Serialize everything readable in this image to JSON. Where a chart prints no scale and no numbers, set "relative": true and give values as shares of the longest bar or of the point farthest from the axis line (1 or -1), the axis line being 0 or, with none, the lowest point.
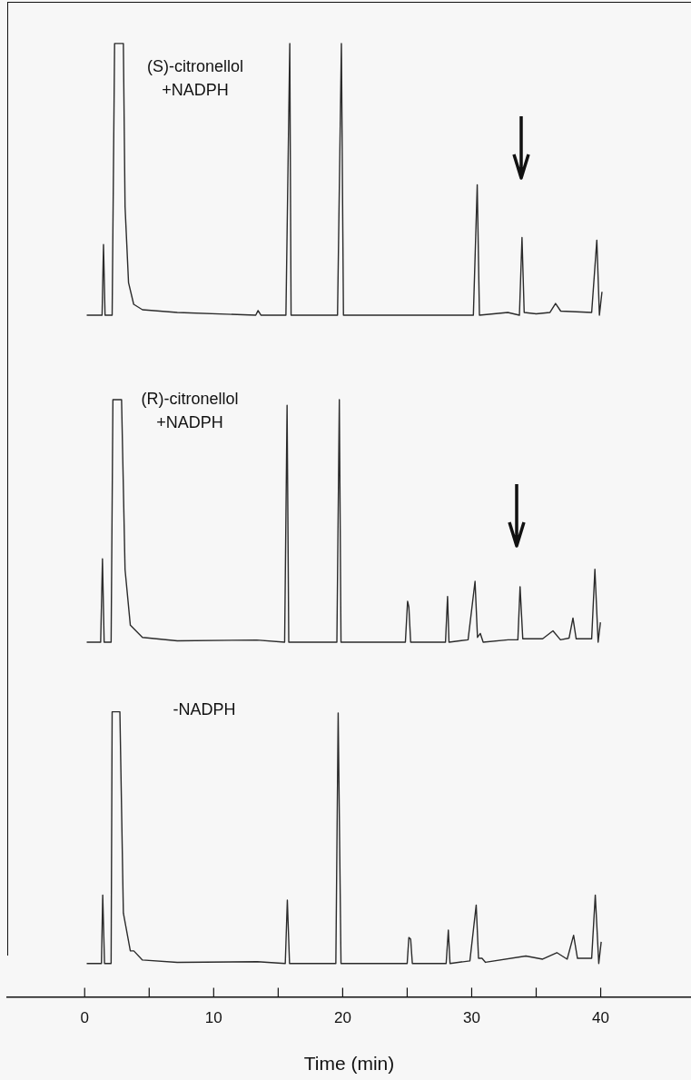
{
  "chart_data": [
    {
      "type": "line",
      "relative": true,
      "xticks": [
        0,
        10,
        20,
        30,
        40
      ],
      "tick_labels": false,
      "x": [
        0.16,
        1.35,
        1.46,
        1.58,
        2.13,
        2.32,
        3.0,
        3.13,
        3.4,
        3.8,
        4.48,
        7.18,
        13.26,
        13.44,
        13.66,
        15.6,
        15.9,
        16.0,
        19.6,
        19.9,
        20.06,
        30.13,
        30.43,
        30.6,
        32.8,
        33.7,
        33.9,
        34.07,
        35.0,
        36.07,
        36.5,
        36.9,
        39.3,
        39.7,
        39.9,
        40.1
      ],
      "series": [
        {
          "name": "(S)-citronellol +NADPH",
          "color": "#2b2b2b",
          "values": [
            0,
            0,
            0.26,
            0,
            0,
            1,
            1,
            0.4,
            0.12,
            0.04,
            0.02,
            0.01,
            0,
            0.017,
            0,
            0,
            1,
            0,
            0,
            1,
            0,
            0,
            0.48,
            0,
            0.01,
            0,
            0.286,
            0.01,
            0.005,
            0.01,
            0.043,
            0.015,
            0.01,
            0.276,
            0,
            0.086
          ]
        }
      ]
    },
    {
      "type": "line",
      "relative": true,
      "xticks": [
        0,
        10,
        20,
        30,
        40
      ],
      "tick_labels": false,
      "x": [
        0.16,
        1.24,
        1.38,
        1.51,
        2.05,
        2.19,
        2.86,
        3.13,
        3.54,
        4.48,
        7.18,
        13.34,
        15.5,
        15.69,
        15.82,
        19.55,
        19.74,
        19.87,
        24.86,
        25.03,
        25.13,
        25.27,
        27.97,
        28.13,
        28.24,
        29.72,
        30.26,
        30.45,
        30.67,
        30.89,
        32.83,
        33.58,
        33.75,
        33.96,
        35.5,
        36.3,
        36.88,
        37.55,
        37.85,
        38.1,
        39.3,
        39.55,
        39.8,
        39.98
      ],
      "series": [
        {
          "name": "(R)-citronellol +NADPH",
          "color": "#2b2b2b",
          "values": [
            0,
            0,
            0.344,
            0,
            0,
            1,
            1,
            0.3,
            0.07,
            0.02,
            0.006,
            0.009,
            0,
            0.977,
            0,
            0,
            1,
            0,
            0,
            0.169,
            0.146,
            0,
            0,
            0.189,
            0,
            0.01,
            0.251,
            0.02,
            0.036,
            0,
            0.01,
            0.01,
            0.229,
            0.014,
            0.014,
            0.047,
            0.01,
            0.017,
            0.1,
            0.014,
            0.014,
            0.301,
            0,
            0.082
          ]
        }
      ]
    },
    {
      "type": "line",
      "relative": true,
      "xlim": [
        -6,
        47
      ],
      "xticks": [
        0,
        {
          "value": 5,
          "label": null
        },
        10,
        {
          "value": 15,
          "label": null
        },
        20,
        {
          "value": 25,
          "label": null
        },
        30,
        {
          "value": 35,
          "label": null
        },
        40
      ],
      "tick_labels": "x",
      "xlabel": "Time (min)",
      "x": [
        0.16,
        1.3,
        1.4,
        1.54,
        2.05,
        2.13,
        2.73,
        3.0,
        3.54,
        3.81,
        4.48,
        7.18,
        13.39,
        15.55,
        15.71,
        15.88,
        19.47,
        19.65,
        19.87,
        25.0,
        25.13,
        25.27,
        25.4,
        28.02,
        28.19,
        28.32,
        29.86,
        30.35,
        30.53,
        30.8,
        31.07,
        34.2,
        35.5,
        36.6,
        37.4,
        37.9,
        38.2,
        39.3,
        39.58,
        39.85,
        40.04
      ],
      "series": [
        {
          "name": "-NADPH",
          "color": "#2b2b2b",
          "values": [
            0.117,
            0.117,
            0.357,
            0.117,
            0.117,
            1,
            1,
            0.294,
            0.161,
            0.161,
            0.129,
            0.121,
            0.123,
            0.117,
            0.339,
            0.117,
            0.117,
            0.996,
            0.117,
            0.117,
            0.208,
            0.202,
            0.117,
            0.117,
            0.234,
            0.117,
            0.126,
            0.322,
            0.135,
            0.135,
            0.121,
            0.143,
            0.132,
            0.155,
            0.132,
            0.216,
            0.135,
            0.135,
            0.357,
            0.117,
            0.193
          ]
        }
      ]
    }
  ]
}
